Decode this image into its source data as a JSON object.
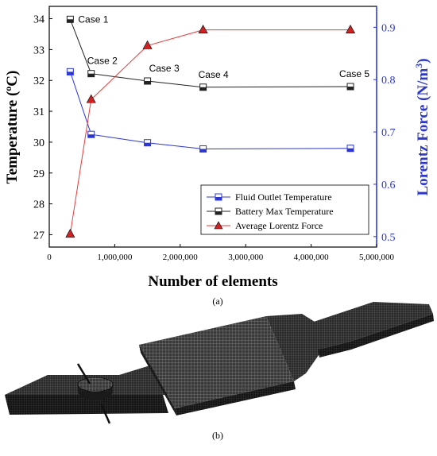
{
  "chart_data": {
    "type": "line",
    "xlabel": "Number of elements",
    "ylabel_left": "Temperature (°C)",
    "ylabel_left_parts": {
      "pre": "Temperature (",
      "sup": "o",
      "post": "C)"
    },
    "ylabel_right": "Lorentz Force (N/m³)",
    "ylabel_right_parts": {
      "pre": "Lorentz Force (N/m",
      "sup": "3",
      "post": ")"
    },
    "xlim": [
      0,
      5000000
    ],
    "ylim_left": [
      26.6,
      34.4
    ],
    "ylim_right": [
      0.48,
      0.94
    ],
    "x_ticks": [
      0,
      1000000,
      2000000,
      3000000,
      4000000,
      5000000
    ],
    "x_tick_labels": [
      "0",
      "1,000,000",
      "2,000,000",
      "3,000,000",
      "4,000,000",
      "5,000,000"
    ],
    "y_left_ticks": [
      27,
      28,
      29,
      30,
      31,
      32,
      33,
      34
    ],
    "y_left_tick_labels": [
      "27",
      "28",
      "29",
      "30",
      "31",
      "32",
      "33",
      "34"
    ],
    "y_right_ticks": [
      0.5,
      0.6,
      0.7,
      0.8,
      0.9
    ],
    "y_right_tick_labels": [
      "0.5",
      "0.6",
      "0.7",
      "0.8",
      "0.9"
    ],
    "legend_position": "bottom-right",
    "series": [
      {
        "name": "Fluid Outlet Temperature",
        "axis": "left",
        "color": "#2a35e0",
        "marker": "half-square",
        "x": [
          320000,
          640000,
          1500000,
          2350000,
          4600000
        ],
        "y": [
          32.28,
          30.25,
          29.98,
          29.78,
          29.8
        ]
      },
      {
        "name": "Battery Max Temperature",
        "axis": "left",
        "color": "#222222",
        "marker": "half-square",
        "x": [
          320000,
          640000,
          1500000,
          2350000,
          4600000
        ],
        "y": [
          33.98,
          32.22,
          31.98,
          31.78,
          31.8
        ]
      },
      {
        "name": "Average Lorentz Force",
        "axis": "right",
        "color": "#e83a3a",
        "marker": "triangle",
        "x": [
          320000,
          640000,
          1500000,
          2350000,
          4600000
        ],
        "y": [
          0.505,
          0.762,
          0.865,
          0.895,
          0.895
        ]
      }
    ],
    "annotations": [
      "Case 1",
      "Case 2",
      "Case 3",
      "Case 4",
      "Case 5"
    ],
    "caption_a": "(a)"
  },
  "figure_b": {
    "caption": "(b)"
  }
}
